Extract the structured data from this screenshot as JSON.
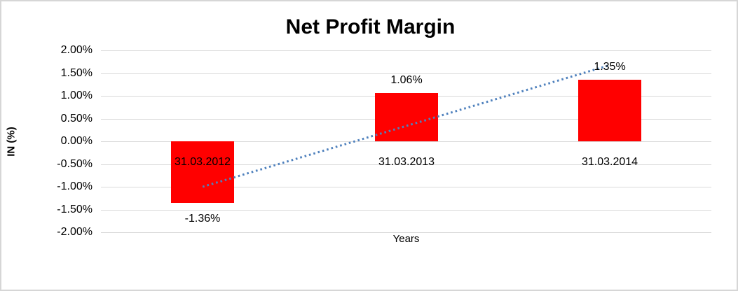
{
  "window": {
    "background": "#FFFFFF",
    "frame_border_color": "#D6D6D6"
  },
  "chart_data": {
    "type": "bar",
    "title": "Net Profit Margin",
    "xlabel": "Years",
    "ylabel": "IN (%)",
    "categories": [
      "31.03.2012",
      "31.03.2013",
      "31.03.2014"
    ],
    "values": [
      -1.36,
      1.06,
      1.35
    ],
    "value_labels": [
      "-1.36%",
      "1.06%",
      "1.35%"
    ],
    "ylim": [
      -2.0,
      2.0
    ],
    "ytick_step": 0.5,
    "yticks": [
      2.0,
      1.5,
      1.0,
      0.5,
      0.0,
      -0.5,
      -1.0,
      -1.5,
      -2.0
    ],
    "ytick_labels": [
      "2.00%",
      "1.50%",
      "1.00%",
      "0.50%",
      "0.00%",
      "-0.50%",
      "-1.00%",
      "-1.50%",
      "-2.00%"
    ],
    "grid": true,
    "legend": "none",
    "bar_color": "#FF0000",
    "gridline_color": "#D9D9D9",
    "text_color": "#000000",
    "trendline": {
      "style": "dotted",
      "color": "#4F81BD",
      "start_value": -1.0,
      "end_value": 1.66
    }
  }
}
